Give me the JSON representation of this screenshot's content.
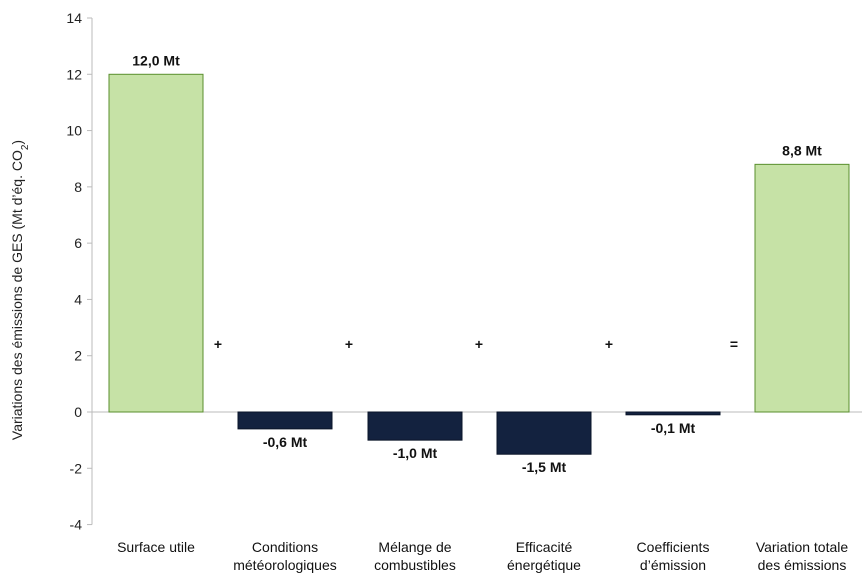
{
  "chart_data": {
    "type": "bar",
    "categories": [
      [
        "Surface utile"
      ],
      [
        "Conditions",
        "météorologiques"
      ],
      [
        "Mélange de",
        "combustibles"
      ],
      [
        "Efficacité",
        "énergétique"
      ],
      [
        "Coefficients",
        "d’émission"
      ],
      [
        "Variation totale",
        "des émissions"
      ]
    ],
    "values": [
      12.0,
      -0.6,
      -1.0,
      -1.5,
      -0.1,
      8.8
    ],
    "data_labels": [
      "12,0 Mt",
      "-0,6 Mt",
      "-1,0 Mt",
      "-1,5 Mt",
      "-0,1 Mt",
      "8,8 Mt"
    ],
    "operators": [
      "+",
      "+",
      "+",
      "+",
      "="
    ],
    "ylabel_parts": [
      "Variations des émissions de GES (Mt d’éq. CO",
      "2",
      ")"
    ],
    "ylim": [
      -4,
      14
    ],
    "yticks": [
      -4,
      -2,
      0,
      2,
      4,
      6,
      8,
      10,
      12,
      14
    ],
    "colors": {
      "total": "#c6e2a6",
      "total_border": "#5a8f2e",
      "component": "#13223f",
      "component_border": "#0a1428"
    }
  }
}
